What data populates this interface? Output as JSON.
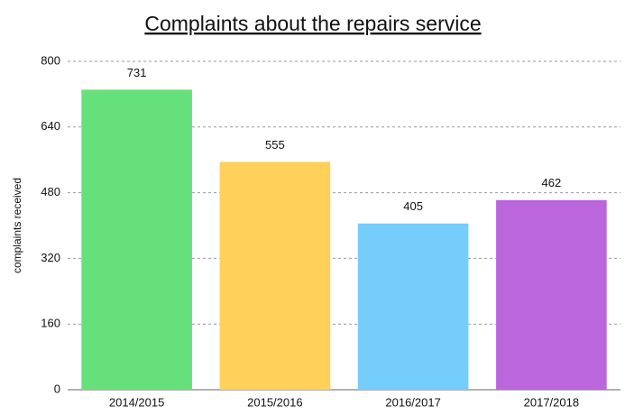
{
  "chart_data": {
    "type": "bar",
    "title": "Complaints about the repairs service",
    "y_label": "complaints received",
    "categories": [
      "2014/2015",
      "2015/2016",
      "2016/2017",
      "2017/2018"
    ],
    "values": [
      731,
      555,
      405,
      462
    ],
    "colors": [
      "#66e07a",
      "#ffd05a",
      "#74cdfa",
      "#bb66dd"
    ],
    "ylim": [
      0,
      800
    ],
    "yticks": [
      0,
      160,
      320,
      480,
      640,
      800
    ],
    "grid": true
  }
}
